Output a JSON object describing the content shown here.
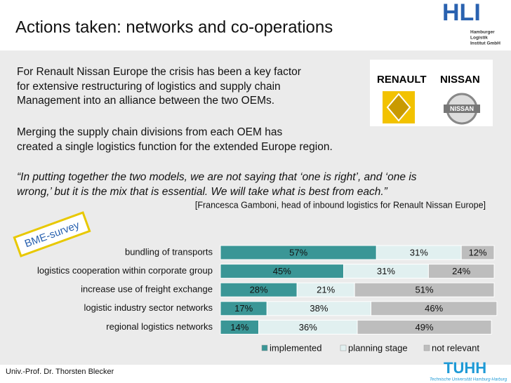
{
  "header": {
    "title": "Actions taken: networks and co-operations",
    "logo": "HLI",
    "logo_lines": [
      "Hamburger",
      "Logistik",
      "Institut GmbH"
    ]
  },
  "brand": {
    "left": "RENAULT",
    "right": "NISSAN",
    "badge": "NISSAN"
  },
  "paragraphs": [
    [
      "For Renault Nissan Europe the crisis has been a key factor",
      "for extensive restructuring of logistics and supply chain",
      "Management into an alliance between the two OEMs."
    ],
    [
      "Merging the supply chain divisions from each OEM has",
      "created a single logistics function for the extended Europe region."
    ]
  ],
  "quote": [
    "“In putting together the two models, we are not saying that ‘one is right’, and ‘one is",
    "wrong,’ but it is the mix that is essential. We will take what is best from each.”"
  ],
  "attribution": "[Francesca Gamboni, head of inbound logistics for Renault Nissan Europe]",
  "stamp": "BME-survey",
  "chart_data": {
    "type": "stacked_bar_horizontal",
    "categories": [
      "bundling of transports",
      "logistics cooperation within corporate group",
      "increase use of freight exchange",
      "logistic industry sector networks",
      "regional logistics networks"
    ],
    "series": [
      {
        "name": "implemented",
        "color": "#3a9696",
        "values": [
          57,
          45,
          28,
          17,
          14
        ],
        "value_labels": [
          "57%",
          "45%",
          "28%",
          "17%",
          "14%"
        ]
      },
      {
        "name": "planning stage",
        "color": "#e1f0f0",
        "values": [
          31,
          31,
          21,
          38,
          36
        ],
        "value_labels": [
          "31%",
          "31%",
          "21%",
          "38%",
          "36%"
        ]
      },
      {
        "name": "not relevant",
        "color": "#bdbdbd",
        "values": [
          12,
          24,
          51,
          46,
          49
        ],
        "value_labels": [
          "12%",
          "24%",
          "51%",
          "46%",
          "49%"
        ]
      }
    ],
    "xlim": [
      0,
      100
    ],
    "legend": "bottom"
  },
  "footer": {
    "author": "Univ.-Prof. Dr. Thorsten Blecker",
    "logo": "TUHH",
    "logo_sub": "Technische Universität Hamburg-Harburg"
  }
}
